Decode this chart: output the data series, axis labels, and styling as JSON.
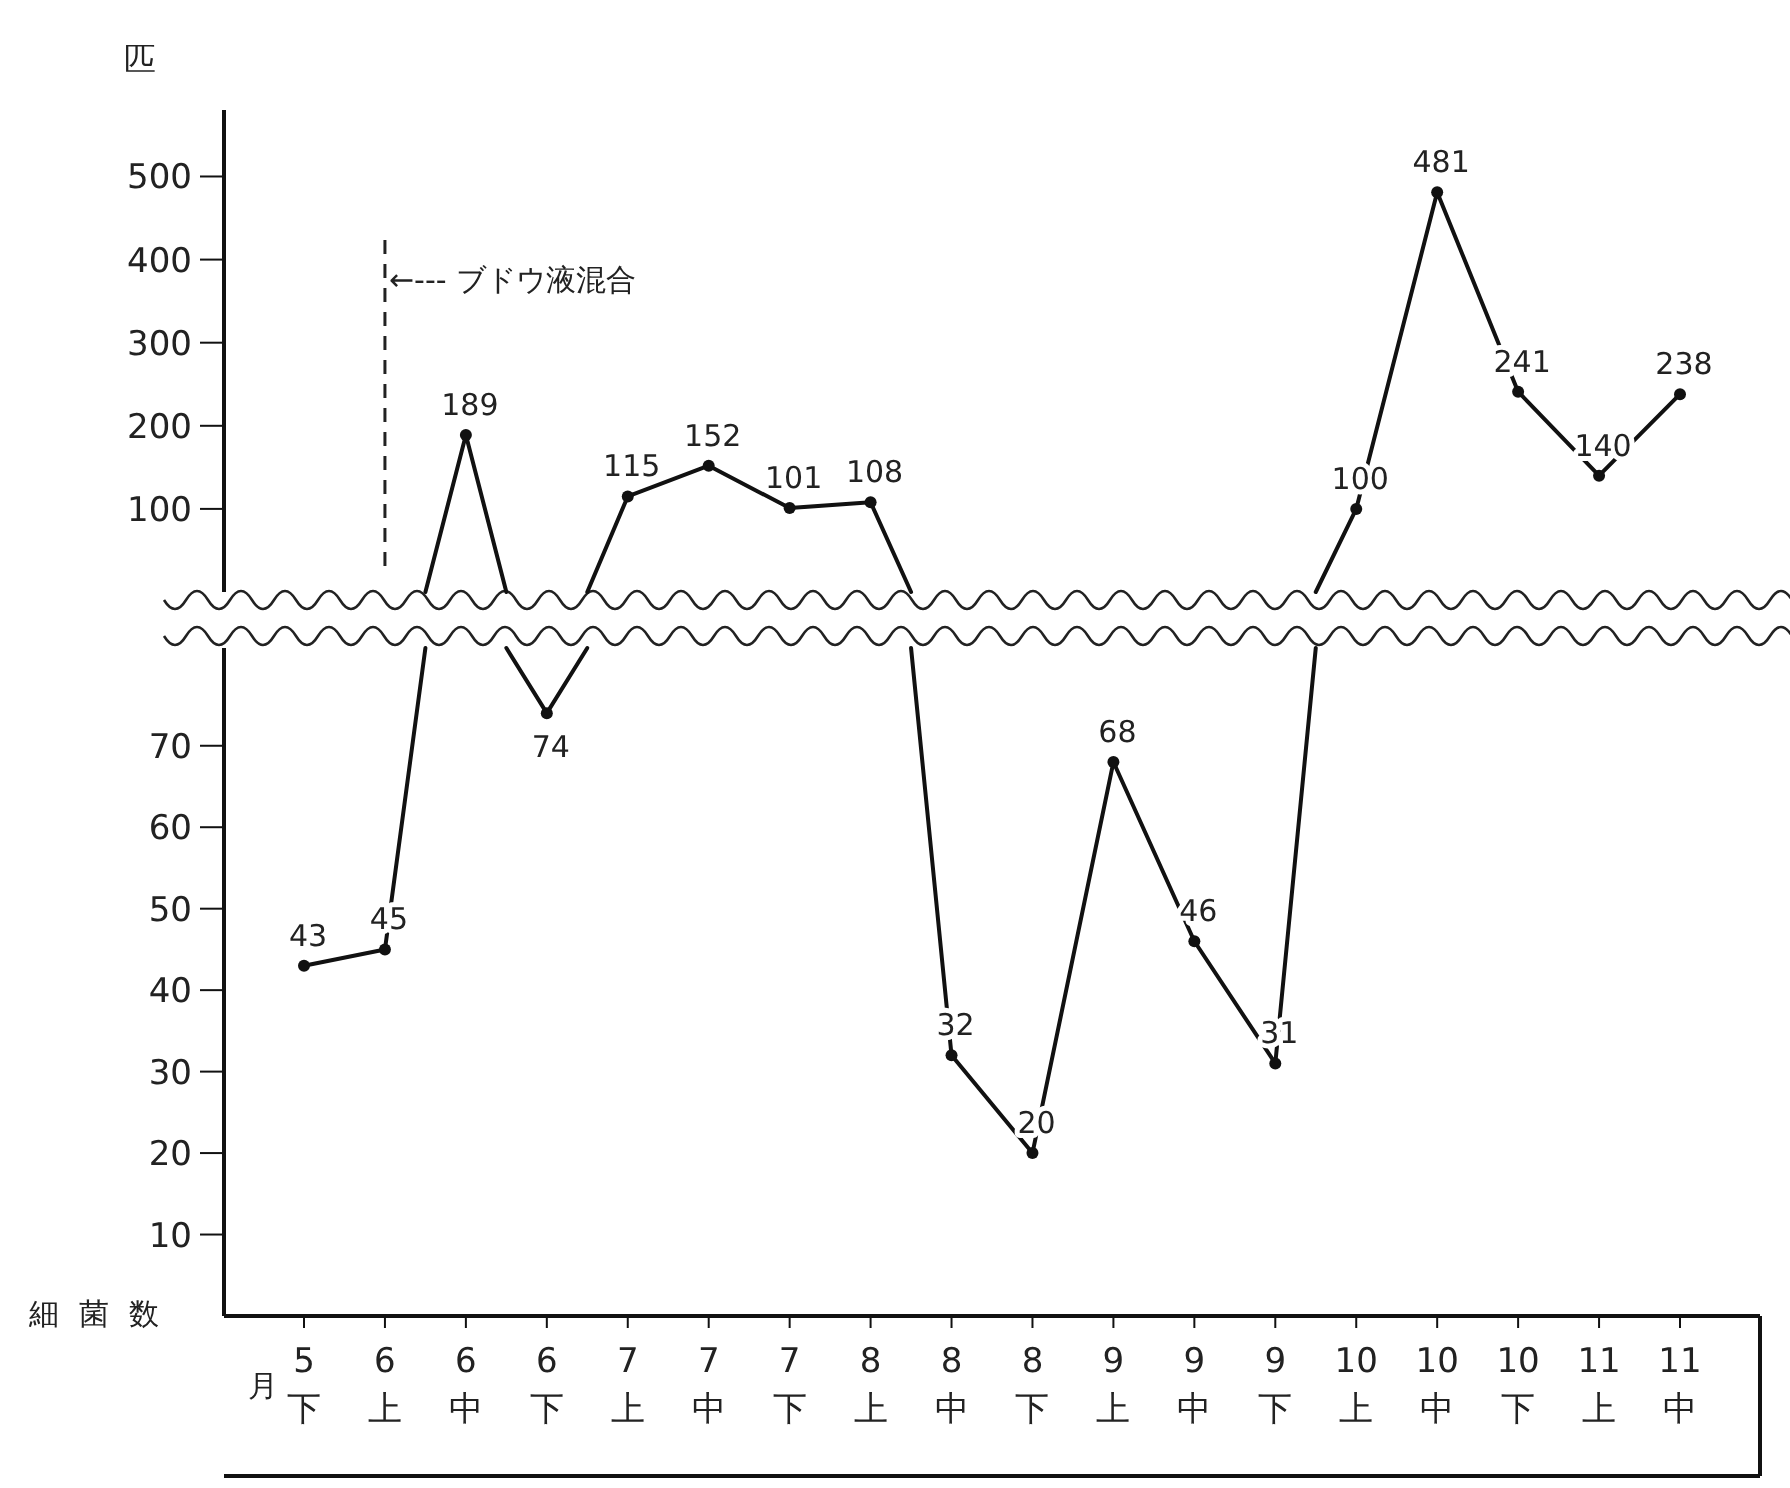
{
  "chart_data": [
    {
      "type": "line",
      "ylabel": "匹",
      "categories": [
        "5\n下",
        "6\n上",
        "6\n中",
        "6\n下",
        "7\n上",
        "7\n中",
        "7\n下",
        "8\n上",
        "8\n中",
        "8\n下",
        "9\n上",
        "9\n中",
        "9\n下",
        "10\n上",
        "10\n中",
        "10\n下",
        "11\n上",
        "11\n中"
      ],
      "series": [
        {
          "color": "#111111",
          "values": [
            null,
            null,
            189,
            null,
            115,
            152,
            101,
            108,
            null,
            null,
            null,
            null,
            null,
            100,
            481,
            241,
            140,
            238
          ]
        }
      ],
      "ylim": [
        0,
        580
      ],
      "yticks": [
        100,
        200,
        300,
        400,
        500
      ],
      "data_labels": true,
      "marker": "circle",
      "line_style": "solid",
      "tick_labels": "y",
      "ref_lines": [
        {
          "axis": "x",
          "value": "6\n上",
          "label": "←--- ブドウ液混合",
          "line_style": "dashed"
        }
      ]
    },
    {
      "type": "line",
      "xlabel": "月",
      "ylabel": "細菌数",
      "categories": [
        "5\n下",
        "6\n上",
        "6\n中",
        "6\n下",
        "7\n上",
        "7\n中",
        "7\n下",
        "8\n上",
        "8\n中",
        "8\n下",
        "9\n上",
        "9\n中",
        "9\n下",
        "10\n上",
        "10\n中",
        "10\n下",
        "11\n上",
        "11\n中"
      ],
      "series": [
        {
          "color": "#111111",
          "values": [
            43,
            45,
            null,
            74,
            null,
            null,
            null,
            null,
            32,
            20,
            68,
            46,
            31,
            null,
            null,
            null,
            null,
            null
          ]
        }
      ],
      "ylim": [
        0,
        82
      ],
      "yticks": [
        10,
        20,
        30,
        40,
        50,
        60,
        70
      ],
      "data_labels": true,
      "marker": "circle",
      "line_style": "solid"
    }
  ]
}
